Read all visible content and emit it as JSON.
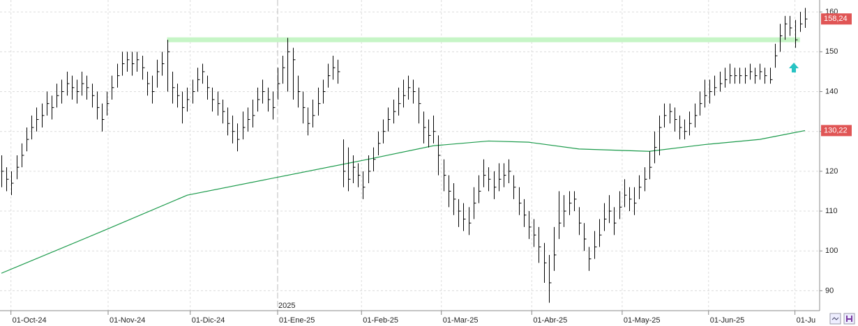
{
  "chart_data": {
    "type": "ohlc",
    "year_label": "2025",
    "xlim": [
      0,
      160
    ],
    "xticks": [
      {
        "value": 1.9,
        "label": "01-Oct-24"
      },
      {
        "value": 21.25,
        "label": "01-Nov-24"
      },
      {
        "value": 37.6,
        "label": "01-Dic-24"
      },
      {
        "value": 55,
        "label": "01-Ene-25"
      },
      {
        "value": 71.7,
        "label": "01-Feb-25"
      },
      {
        "value": 87.6,
        "label": "01-Mar-25"
      },
      {
        "value": 105.6,
        "label": "01-Abr-25"
      },
      {
        "value": 123.6,
        "label": "01-May-25"
      },
      {
        "value": 140.8,
        "label": "01-Jun-25"
      },
      {
        "value": 158,
        "label": "01-Ju"
      }
    ],
    "year_tick": 55,
    "ylim": [
      85,
      163
    ],
    "yticks": [
      90,
      100,
      110,
      120,
      130,
      140,
      150,
      160
    ],
    "grid": true,
    "price": {
      "color": "#000000",
      "last_value_label": "158,24",
      "label_color": "#e05555",
      "high": [
        124,
        121,
        120,
        124,
        127,
        131,
        134,
        136,
        137,
        140,
        139,
        142,
        143,
        145,
        144,
        143,
        145,
        144,
        142,
        140,
        137,
        140,
        144,
        147,
        150,
        150,
        150,
        150,
        149,
        145,
        144,
        148,
        150,
        153,
        145,
        142,
        140,
        141,
        143,
        146,
        147,
        144,
        141,
        140,
        138,
        136,
        134,
        132,
        135,
        136,
        138,
        141,
        143,
        141,
        140,
        146,
        149,
        153.5,
        151,
        144,
        140,
        136,
        138,
        141,
        143,
        147,
        149,
        148,
        128,
        126,
        124,
        122,
        120,
        124,
        126,
        130,
        133,
        136,
        138,
        141,
        143,
        144,
        143,
        141,
        135,
        133,
        134,
        129,
        123,
        119,
        117,
        113,
        112,
        111,
        116,
        119,
        123,
        121,
        120,
        122,
        122,
        123,
        119,
        116,
        113,
        110,
        108,
        106,
        102,
        99,
        106,
        115,
        114,
        115,
        115,
        111,
        107,
        101,
        105,
        108,
        112,
        114,
        111,
        115,
        118,
        116,
        116,
        119,
        121,
        125,
        130,
        134,
        137,
        137,
        136,
        134,
        133,
        135,
        137,
        140,
        143,
        143,
        144,
        145,
        146,
        147,
        146,
        146,
        146,
        147,
        146,
        147,
        146,
        146,
        152,
        157,
        159,
        159,
        158,
        160,
        161
      ],
      "low": [
        116,
        115,
        114,
        118,
        121,
        125,
        128,
        130,
        131,
        134,
        133,
        136,
        137,
        139,
        138,
        137,
        139,
        138,
        136,
        133,
        130,
        134,
        138,
        141,
        144,
        145,
        144,
        145,
        143,
        139,
        137,
        141,
        144,
        140,
        137,
        136,
        132,
        135,
        137,
        140,
        142,
        138,
        135,
        134,
        132,
        129,
        127,
        125,
        128,
        130,
        131,
        135,
        137,
        135,
        133,
        138,
        142,
        140,
        138,
        136,
        132,
        129,
        131,
        134,
        137,
        141,
        143,
        142,
        116,
        115,
        117,
        116,
        113,
        117,
        120,
        124,
        127,
        130,
        132,
        134,
        136,
        138,
        137,
        132,
        127,
        126,
        127,
        119,
        115,
        111,
        109,
        106,
        105,
        104,
        108,
        112,
        116,
        115,
        113,
        115,
        116,
        117,
        113,
        109,
        106,
        103,
        101,
        97,
        92,
        87,
        95,
        103,
        106,
        109,
        110,
        104,
        100,
        95,
        98,
        101,
        105,
        107,
        104,
        108,
        111,
        110,
        109,
        113,
        115,
        118,
        122,
        124,
        131,
        132,
        130,
        128,
        128,
        129,
        131,
        134,
        136,
        137,
        139,
        140,
        141,
        142,
        142,
        142,
        142,
        143,
        142,
        143,
        142,
        142,
        146,
        150,
        153,
        154,
        151,
        155,
        156
      ],
      "close": [
        120,
        118,
        117,
        121,
        124,
        128,
        131,
        133,
        134,
        137,
        136,
        139,
        140,
        142,
        141,
        140,
        142,
        141,
        139,
        136,
        133,
        137,
        141,
        144,
        147,
        148,
        147,
        148,
        146,
        142,
        140,
        145,
        147,
        150,
        141,
        139,
        136,
        138,
        140,
        143,
        145,
        141,
        138,
        137,
        135,
        132,
        130,
        128,
        131,
        133,
        134,
        138,
        140,
        138,
        136,
        142,
        146,
        150,
        148,
        140,
        136,
        132,
        134,
        137,
        140,
        144,
        146,
        145,
        120,
        118,
        121,
        119,
        116,
        120,
        123,
        127,
        130,
        133,
        135,
        137,
        139,
        141,
        140,
        137,
        131,
        129,
        130,
        124,
        119,
        115,
        113,
        110,
        108,
        107,
        112,
        115,
        119,
        118,
        116,
        118,
        119,
        120,
        116,
        112,
        109,
        106,
        104,
        101,
        97,
        92,
        99,
        107,
        110,
        112,
        113,
        107,
        103,
        98,
        101,
        104,
        108,
        110,
        107,
        111,
        114,
        113,
        112,
        116,
        118,
        121,
        126,
        131,
        134,
        135,
        133,
        131,
        130,
        132,
        134,
        137,
        139,
        140,
        141,
        142,
        143,
        144,
        144,
        144,
        144,
        145,
        144,
        145,
        144,
        143,
        149,
        154,
        157,
        156,
        153,
        157,
        158.24
      ]
    },
    "moving_average": {
      "color": "#1a9a4a",
      "last_value_label": "130,22",
      "label_color": "#e05555",
      "x": [
        0,
        20,
        37,
        55,
        73,
        86,
        97,
        105,
        115,
        129,
        140,
        151,
        160
      ],
      "values": [
        94.4,
        104.9,
        114,
        118.5,
        123,
        126.4,
        127.6,
        127.3,
        125.6,
        125,
        126.7,
        128,
        130.22
      ]
    },
    "level": {
      "value": 153,
      "x": [
        33,
        159
      ],
      "color": "#c6f5c6"
    }
  }
}
